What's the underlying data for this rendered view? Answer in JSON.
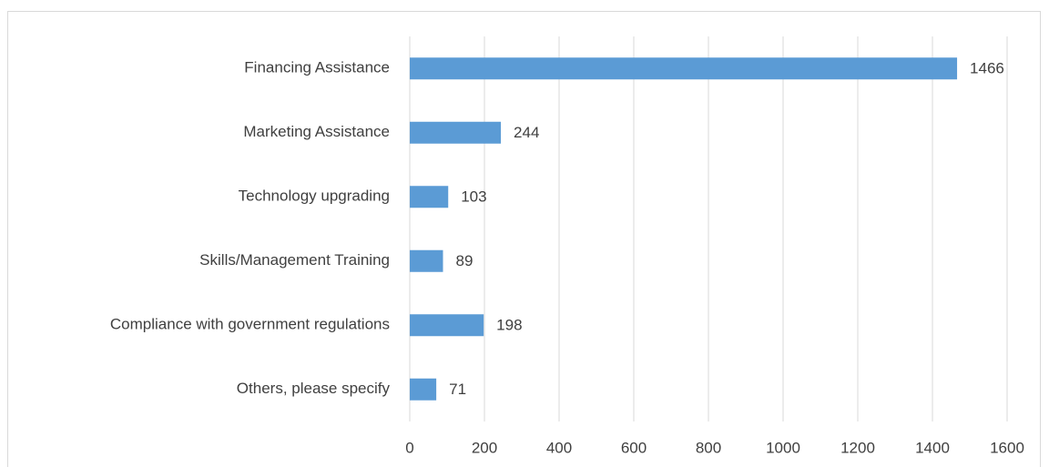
{
  "chart_data": {
    "type": "bar",
    "orientation": "horizontal",
    "categories": [
      "Financing Assistance",
      "Marketing Assistance",
      "Technology upgrading",
      "Skills/Management Training",
      "Compliance with government regulations",
      "Others, please specify"
    ],
    "values": [
      1466,
      244,
      103,
      89,
      198,
      71
    ],
    "color": "#5b9bd5",
    "xlim": [
      0,
      1600
    ],
    "xticks": [
      0,
      200,
      400,
      600,
      800,
      1000,
      1200,
      1400,
      1600
    ],
    "grid": true
  }
}
